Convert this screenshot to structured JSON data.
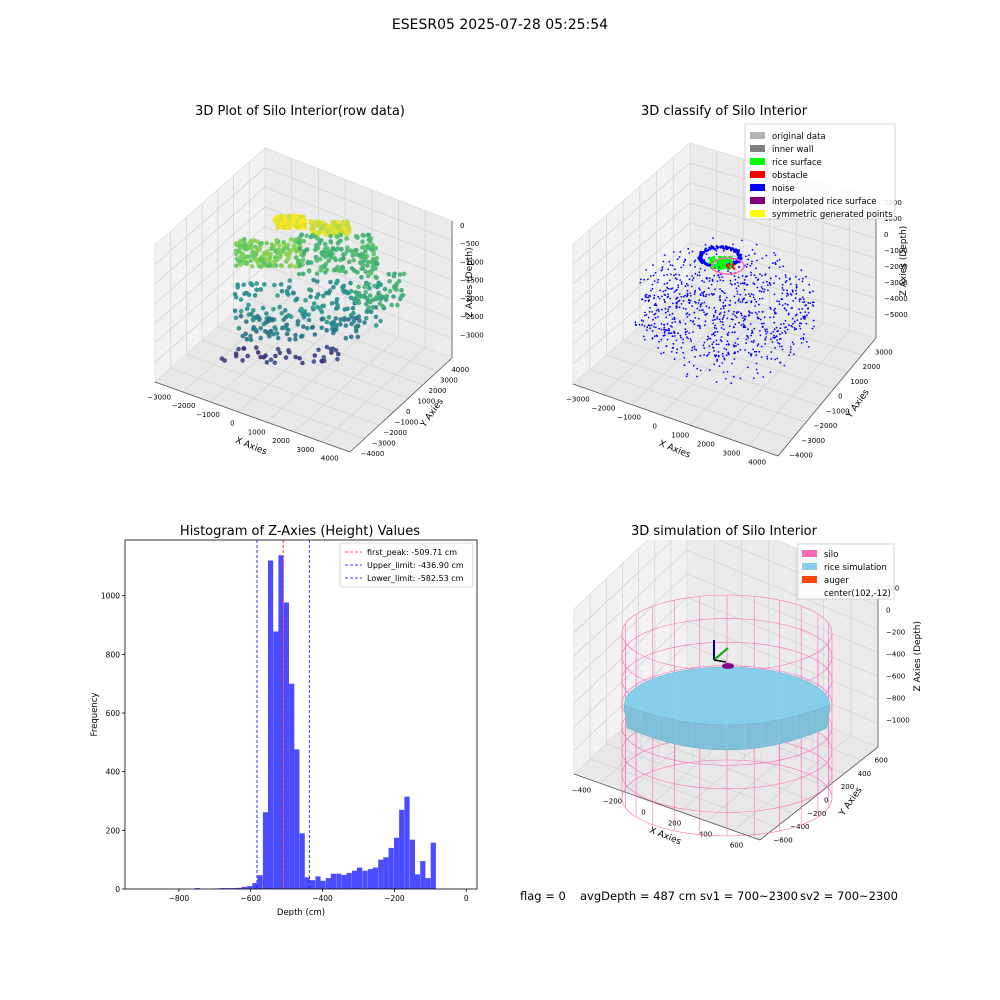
{
  "figure_title": "ESESR05 2025-07-28 05:25:54",
  "footer": {
    "flag": "flag = 0",
    "avg_depth": "avgDepth = 487 cm",
    "sv1": "sv1 = 700~2300",
    "sv2": "sv2 = 700~2300"
  },
  "colors": {
    "histogram_bar": "#4b4bff",
    "first_peak_line": "#ff0000",
    "limit_line": "#0000ff",
    "silo_wire": "#ff69b4",
    "rice_sim": "#87ceeb",
    "auger": "#ff4500",
    "pane": "#f2f2f2"
  },
  "chart_data": [
    {
      "type": "scatter",
      "title": "3D Plot of Silo Interior(row data)",
      "xlabel": "X Axies",
      "ylabel": "Y Axies",
      "zlabel": "Z Axies (Depth)",
      "x_ticks": [
        "−3000",
        "−2000",
        "−1000",
        "0",
        "1000",
        "2000",
        "3000",
        "4000"
      ],
      "y_ticks": [
        "−4000",
        "−3000",
        "−2000",
        "−1000",
        "0",
        "1000",
        "2000",
        "3000",
        "4000"
      ],
      "z_ticks": [
        "0",
        "−500",
        "−1000",
        "−1500",
        "−2000",
        "−2500",
        "−3000"
      ],
      "xlim": [
        -3000,
        4000
      ],
      "ylim": [
        -4000,
        4000
      ],
      "zlim": [
        -3500,
        0
      ],
      "colormap": "viridis"
    },
    {
      "type": "scatter",
      "title": "3D classify of Silo Interior",
      "xlabel": "X Axies",
      "ylabel": "Y Axies",
      "zlabel": "Z Axies (Depth)",
      "x_ticks": [
        "−3000",
        "−2000",
        "−1000",
        "0",
        "1000",
        "2000",
        "3000",
        "4000"
      ],
      "y_ticks": [
        "−4000",
        "−3000",
        "−2000",
        "−1000",
        "0",
        "1000",
        "2000",
        "3000"
      ],
      "z_ticks": [
        "2000",
        "1000",
        "0",
        "−1000",
        "−2000",
        "−3000",
        "−4000",
        "−5000"
      ],
      "legend_position": "top-right",
      "legend": [
        {
          "label": "original data",
          "color": "#b3b3b3"
        },
        {
          "label": "inner wall",
          "color": "#808080"
        },
        {
          "label": "rice surface",
          "color": "#00ff00"
        },
        {
          "label": "obstacle",
          "color": "#ff0000"
        },
        {
          "label": "noise",
          "color": "#0000ff"
        },
        {
          "label": "interpolated rice surface",
          "color": "#800080"
        },
        {
          "label": "symmetric generated points",
          "color": "#ffff00"
        }
      ]
    },
    {
      "type": "bar",
      "title": "Histogram of Z-Axies (Height) Values",
      "xlabel": "Depth (cm)",
      "ylabel": "Frequency",
      "xlim": [
        -950,
        30
      ],
      "ylim": [
        0,
        1190
      ],
      "x_ticks": [
        -800,
        -600,
        -400,
        -200,
        0
      ],
      "y_ticks": [
        0,
        200,
        400,
        600,
        800,
        1000
      ],
      "bin_width": 14.6,
      "bins": [
        {
          "x": -755,
          "value": 3
        },
        {
          "x": -700,
          "value": 2
        },
        {
          "x": -685,
          "value": 3
        },
        {
          "x": -670,
          "value": 3
        },
        {
          "x": -655,
          "value": 3
        },
        {
          "x": -640,
          "value": 4
        },
        {
          "x": -625,
          "value": 7
        },
        {
          "x": -610,
          "value": 10
        },
        {
          "x": -596,
          "value": 20
        },
        {
          "x": -581,
          "value": 47
        },
        {
          "x": -566,
          "value": 262
        },
        {
          "x": -552,
          "value": 1120
        },
        {
          "x": -537,
          "value": 878
        },
        {
          "x": -523,
          "value": 1138
        },
        {
          "x": -508,
          "value": 977
        },
        {
          "x": -493,
          "value": 700
        },
        {
          "x": -479,
          "value": 476
        },
        {
          "x": -464,
          "value": 190
        },
        {
          "x": -450,
          "value": 40
        },
        {
          "x": -435,
          "value": 30
        },
        {
          "x": -420,
          "value": 43
        },
        {
          "x": -406,
          "value": 28
        },
        {
          "x": -391,
          "value": 37
        },
        {
          "x": -377,
          "value": 52
        },
        {
          "x": -362,
          "value": 52
        },
        {
          "x": -347,
          "value": 48
        },
        {
          "x": -333,
          "value": 55
        },
        {
          "x": -318,
          "value": 62
        },
        {
          "x": -304,
          "value": 73
        },
        {
          "x": -289,
          "value": 62
        },
        {
          "x": -274,
          "value": 68
        },
        {
          "x": -260,
          "value": 73
        },
        {
          "x": -245,
          "value": 100
        },
        {
          "x": -231,
          "value": 108
        },
        {
          "x": -216,
          "value": 140
        },
        {
          "x": -201,
          "value": 175
        },
        {
          "x": -187,
          "value": 270
        },
        {
          "x": -172,
          "value": 315
        },
        {
          "x": -157,
          "value": 168
        },
        {
          "x": -143,
          "value": 50
        },
        {
          "x": -128,
          "value": 95
        },
        {
          "x": -114,
          "value": 37
        },
        {
          "x": -99,
          "value": 158
        }
      ],
      "vlines": [
        {
          "label": "first_peak: -509.71 cm",
          "x": -509.71,
          "color": "#ff0000"
        },
        {
          "label": "Upper_limit: -436.90 cm",
          "x": -436.9,
          "color": "#0000ff"
        },
        {
          "label": "Lower_limit: -582.53 cm",
          "x": -582.53,
          "color": "#0000ff"
        }
      ],
      "legend_position": "top-right"
    },
    {
      "type": "scatter",
      "title": "3D simulation of Silo Interior",
      "xlabel": "X Axies",
      "ylabel": "Y Axies",
      "zlabel": "Z Axies (Depth)",
      "x_ticks": [
        "−400",
        "−200",
        "0",
        "200",
        "400",
        "600"
      ],
      "y_ticks": [
        "−600",
        "−400",
        "−200",
        "0",
        "200",
        "400",
        "600"
      ],
      "z_ticks": [
        "200",
        "0",
        "−200",
        "−400",
        "−600",
        "−800",
        "−1000"
      ],
      "legend_position": "top-right",
      "legend": [
        {
          "label": "silo",
          "color": "#ff69b4"
        },
        {
          "label": "rice simulation",
          "color": "#87ceeb"
        },
        {
          "label": "auger",
          "color": "#ff4500"
        },
        {
          "label": "center(102,-12)",
          "color": ""
        }
      ]
    }
  ]
}
